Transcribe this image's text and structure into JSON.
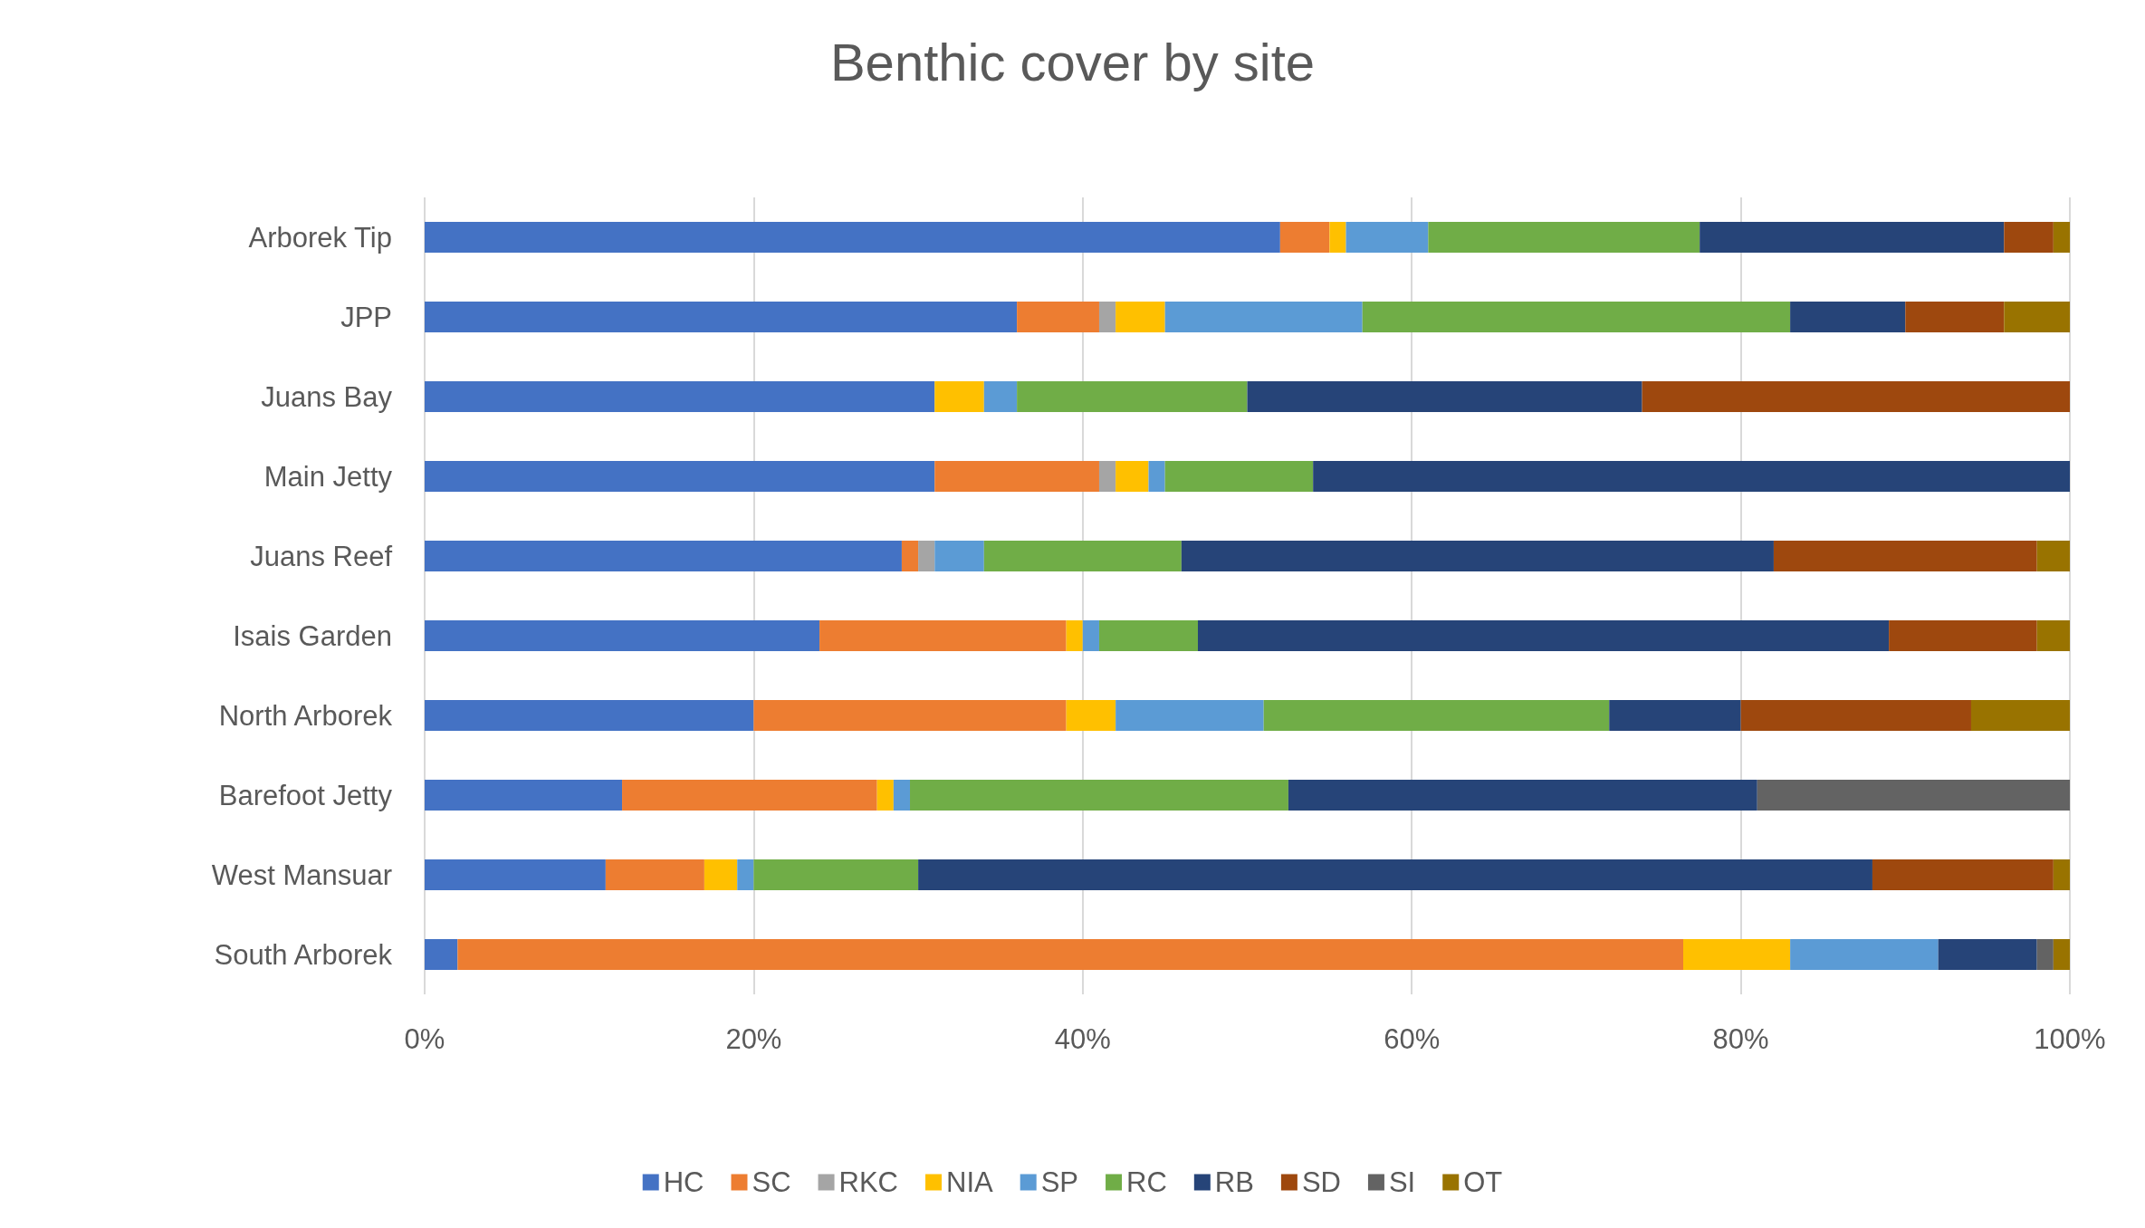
{
  "chart_data": {
    "type": "bar",
    "title": "Benthic cover by site",
    "orientation": "horizontal",
    "stacked": true,
    "categories": [
      "Arborek Tip",
      "JPP",
      "Juans Bay",
      "Main Jetty",
      "Juans Reef",
      "Isais Garden",
      "North Arborek",
      "Barefoot Jetty",
      "West Mansuar",
      "South Arborek"
    ],
    "series": [
      {
        "name": "HC",
        "color": "#4472c4",
        "values": [
          52,
          36,
          31,
          31,
          29,
          24,
          20,
          12,
          11,
          2
        ]
      },
      {
        "name": "SC",
        "color": "#ed7d31",
        "values": [
          3,
          5,
          0,
          10,
          1,
          15,
          19,
          15.5,
          6,
          74.5
        ]
      },
      {
        "name": "RKC",
        "color": "#a5a5a5",
        "values": [
          0,
          1,
          0,
          1,
          1,
          0,
          0,
          0,
          0,
          0
        ]
      },
      {
        "name": "NIA",
        "color": "#ffc000",
        "values": [
          1,
          3,
          3,
          2,
          0,
          1,
          3,
          1,
          2,
          6.5
        ]
      },
      {
        "name": "SP",
        "color": "#5b9bd5",
        "values": [
          5,
          12,
          2,
          1,
          3,
          1,
          9,
          1,
          1,
          9
        ]
      },
      {
        "name": "RC",
        "color": "#70ad47",
        "values": [
          16.5,
          26,
          14,
          9,
          12,
          6,
          21,
          23,
          10,
          0
        ]
      },
      {
        "name": "RB",
        "color": "#264478",
        "values": [
          18.5,
          7,
          24,
          46,
          36,
          42,
          8,
          28.5,
          58,
          6
        ]
      },
      {
        "name": "SD",
        "color": "#9e480e",
        "values": [
          3,
          6,
          26,
          0,
          16,
          9,
          14,
          0,
          11,
          0
        ]
      },
      {
        "name": "SI",
        "color": "#636363",
        "values": [
          0,
          0,
          0,
          0,
          0,
          0,
          0,
          19,
          0,
          1
        ]
      },
      {
        "name": "OT",
        "color": "#997300",
        "values": [
          1,
          4,
          0,
          0,
          2,
          2,
          6,
          0,
          1,
          1
        ]
      }
    ],
    "xlim": [
      0,
      100
    ],
    "xticks": [
      {
        "value": 0,
        "label": "0%"
      },
      {
        "value": 20,
        "label": "20%"
      },
      {
        "value": 40,
        "label": "40%"
      },
      {
        "value": 60,
        "label": "60%"
      },
      {
        "value": 80,
        "label": "80%"
      },
      {
        "value": 100,
        "label": "100%"
      }
    ],
    "grid": "x",
    "legend": "bottom"
  }
}
